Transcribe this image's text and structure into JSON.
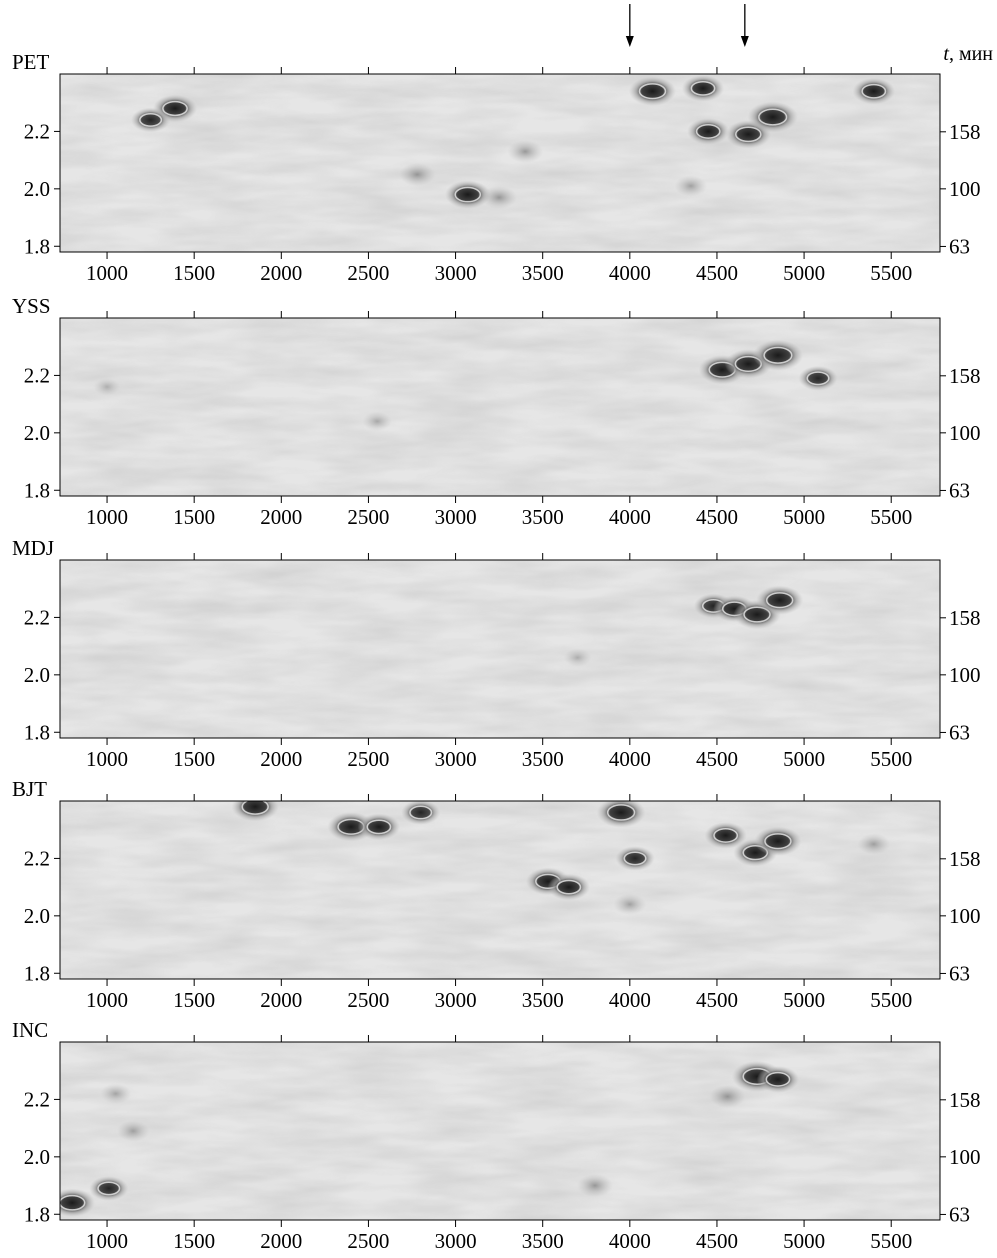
{
  "chart_data": [
    {
      "type": "heatmap",
      "station": "PET",
      "x_ticks": [
        1000,
        1500,
        2000,
        2500,
        3000,
        3500,
        4000,
        4500,
        5000,
        5500
      ],
      "xlim": [
        730,
        5780
      ],
      "y_ticks_left": [
        "1.8",
        "2.0",
        "2.2"
      ],
      "y_ticks_right": [
        "63",
        "100",
        "158"
      ],
      "ylim_log10_period": [
        1.78,
        2.4
      ],
      "right_axis_label": "t, мин",
      "colormap": "grayscale",
      "features": [
        {
          "x": 1390,
          "y": 2.28,
          "intensity": 0.75
        },
        {
          "x": 1250,
          "y": 2.24,
          "intensity": 0.6
        },
        {
          "x": 2780,
          "y": 2.05,
          "intensity": 0.5
        },
        {
          "x": 3070,
          "y": 1.98,
          "intensity": 0.8
        },
        {
          "x": 3250,
          "y": 1.97,
          "intensity": 0.5
        },
        {
          "x": 3400,
          "y": 2.13,
          "intensity": 0.5
        },
        {
          "x": 4130,
          "y": 2.34,
          "intensity": 0.85
        },
        {
          "x": 4420,
          "y": 2.35,
          "intensity": 0.7
        },
        {
          "x": 4450,
          "y": 2.2,
          "intensity": 0.7
        },
        {
          "x": 4680,
          "y": 2.19,
          "intensity": 0.8
        },
        {
          "x": 4820,
          "y": 2.25,
          "intensity": 0.95
        },
        {
          "x": 5400,
          "y": 2.34,
          "intensity": 0.7
        },
        {
          "x": 4350,
          "y": 2.01,
          "intensity": 0.4
        }
      ]
    },
    {
      "type": "heatmap",
      "station": "YSS",
      "x_ticks": [
        1000,
        1500,
        2000,
        2500,
        3000,
        3500,
        4000,
        4500,
        5000,
        5500
      ],
      "xlim": [
        730,
        5780
      ],
      "y_ticks_left": [
        "1.8",
        "2.0",
        "2.2"
      ],
      "y_ticks_right": [
        "63",
        "100",
        "158"
      ],
      "ylim_log10_period": [
        1.78,
        2.4
      ],
      "colormap": "grayscale",
      "features": [
        {
          "x": 4530,
          "y": 2.22,
          "intensity": 0.85
        },
        {
          "x": 4680,
          "y": 2.24,
          "intensity": 0.85
        },
        {
          "x": 4850,
          "y": 2.27,
          "intensity": 0.95
        },
        {
          "x": 5080,
          "y": 2.19,
          "intensity": 0.6
        },
        {
          "x": 2550,
          "y": 2.04,
          "intensity": 0.3
        },
        {
          "x": 1000,
          "y": 2.16,
          "intensity": 0.2
        }
      ]
    },
    {
      "type": "heatmap",
      "station": "MDJ",
      "x_ticks": [
        1000,
        1500,
        2000,
        2500,
        3000,
        3500,
        4000,
        4500,
        5000,
        5500
      ],
      "xlim": [
        730,
        5780
      ],
      "y_ticks_left": [
        "1.8",
        "2.0",
        "2.2"
      ],
      "y_ticks_right": [
        "63",
        "100",
        "158"
      ],
      "ylim_log10_period": [
        1.78,
        2.4
      ],
      "colormap": "grayscale",
      "features": [
        {
          "x": 4480,
          "y": 2.24,
          "intensity": 0.6
        },
        {
          "x": 4600,
          "y": 2.23,
          "intensity": 0.7
        },
        {
          "x": 4730,
          "y": 2.21,
          "intensity": 0.85
        },
        {
          "x": 4860,
          "y": 2.26,
          "intensity": 0.85
        },
        {
          "x": 3700,
          "y": 2.06,
          "intensity": 0.25
        }
      ]
    },
    {
      "type": "heatmap",
      "station": "BJT",
      "x_ticks": [
        1000,
        1500,
        2000,
        2500,
        3000,
        3500,
        4000,
        4500,
        5000,
        5500
      ],
      "xlim": [
        730,
        5780
      ],
      "y_ticks_left": [
        "1.8",
        "2.0",
        "2.2"
      ],
      "y_ticks_right": [
        "63",
        "100",
        "158"
      ],
      "ylim_log10_period": [
        1.78,
        2.4
      ],
      "colormap": "grayscale",
      "features": [
        {
          "x": 1850,
          "y": 2.38,
          "intensity": 0.85
        },
        {
          "x": 2400,
          "y": 2.31,
          "intensity": 0.85
        },
        {
          "x": 2560,
          "y": 2.31,
          "intensity": 0.7
        },
        {
          "x": 2800,
          "y": 2.36,
          "intensity": 0.6
        },
        {
          "x": 3530,
          "y": 2.12,
          "intensity": 0.75
        },
        {
          "x": 3650,
          "y": 2.1,
          "intensity": 0.7
        },
        {
          "x": 3950,
          "y": 2.36,
          "intensity": 0.9
        },
        {
          "x": 4030,
          "y": 2.2,
          "intensity": 0.6
        },
        {
          "x": 4000,
          "y": 2.04,
          "intensity": 0.4
        },
        {
          "x": 4550,
          "y": 2.28,
          "intensity": 0.7
        },
        {
          "x": 4720,
          "y": 2.22,
          "intensity": 0.75
        },
        {
          "x": 4850,
          "y": 2.26,
          "intensity": 0.85
        },
        {
          "x": 5400,
          "y": 2.25,
          "intensity": 0.4
        }
      ]
    },
    {
      "type": "heatmap",
      "station": "INC",
      "x_ticks": [
        1000,
        1500,
        2000,
        2500,
        3000,
        3500,
        4000,
        4500,
        5000,
        5500
      ],
      "xlim": [
        730,
        5780
      ],
      "y_ticks_left": [
        "1.8",
        "2.0",
        "2.2"
      ],
      "y_ticks_right": [
        "63",
        "100",
        "158"
      ],
      "ylim_log10_period": [
        1.78,
        2.4
      ],
      "colormap": "grayscale",
      "features": [
        {
          "x": 800,
          "y": 1.84,
          "intensity": 0.8
        },
        {
          "x": 1010,
          "y": 1.89,
          "intensity": 0.6
        },
        {
          "x": 4730,
          "y": 2.28,
          "intensity": 0.95
        },
        {
          "x": 4850,
          "y": 2.27,
          "intensity": 0.7
        },
        {
          "x": 4560,
          "y": 2.21,
          "intensity": 0.5
        },
        {
          "x": 3800,
          "y": 1.9,
          "intensity": 0.5
        },
        {
          "x": 1150,
          "y": 2.09,
          "intensity": 0.4
        },
        {
          "x": 1050,
          "y": 2.22,
          "intensity": 0.35
        }
      ]
    }
  ],
  "markers": {
    "arrows_x": [
      4000,
      4660
    ],
    "style": "down-arrow"
  }
}
